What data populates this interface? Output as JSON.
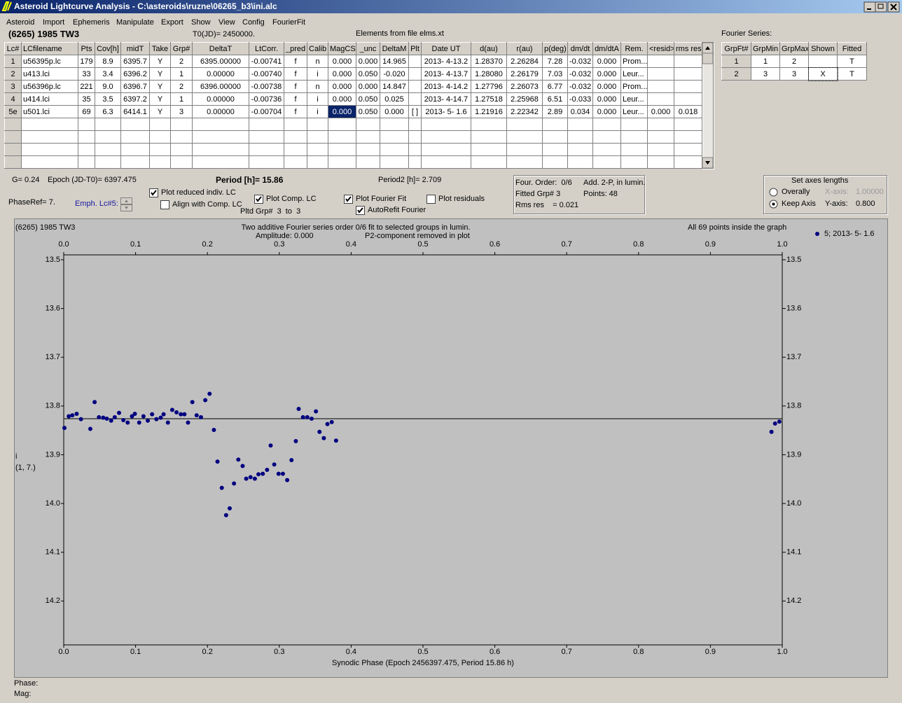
{
  "window": {
    "title": "Asteroid Lightcurve Analysis - C:\\asteroids\\ruzne\\06265_b3\\ini.alc"
  },
  "menu": [
    "Asteroid",
    "Import",
    "Ephemeris",
    "Manipulate",
    "Export",
    "Show",
    "View",
    "Config",
    "FourierFit"
  ],
  "header": {
    "object": "(6265) 1985 TW3",
    "t0": "T0(JD)= 2450000.",
    "elements": "Elements from file elms.xt",
    "fourier_label": "Fourier Series:"
  },
  "table": {
    "columns": [
      "Lc#",
      "LCfilename",
      "Pts",
      "Cov[h]",
      "midT",
      "Take",
      "Grp#",
      "DeltaT",
      "LtCorr.",
      "_pred",
      "Calib",
      "MagCS",
      "_unc",
      "DeltaM",
      "Plt",
      "Date UT",
      "d(au)",
      "r(au)",
      "p(deg)",
      "dm/dt",
      "dm/dtA",
      "Rem.",
      "<resid>",
      "rms res"
    ],
    "rows": [
      {
        "label": "1",
        "cells": [
          "u56395p.lc",
          "179",
          "8.9",
          "6395.7",
          "Y",
          "2",
          "6395.00000",
          "-0.00741",
          "f",
          "n",
          "0.000",
          "0.000",
          "14.965",
          null,
          "2013- 4-13.2",
          "1.28370",
          "2.26284",
          "7.28",
          "-0.032",
          "0.000",
          "Prom...",
          null,
          null
        ]
      },
      {
        "label": "2",
        "cells": [
          "u413.lci",
          "33",
          "3.4",
          "6396.2",
          "Y",
          "1",
          "0.00000",
          "-0.00740",
          "f",
          "i",
          "0.000",
          "0.050",
          "-0.020",
          null,
          "2013- 4-13.7",
          "1.28080",
          "2.26179",
          "7.03",
          "-0.032",
          "0.000",
          "Leur...",
          null,
          null
        ]
      },
      {
        "label": "3",
        "cells": [
          "u56396p.lc",
          "221",
          "9.0",
          "6396.7",
          "Y",
          "2",
          "6396.00000",
          "-0.00738",
          "f",
          "n",
          "0.000",
          "0.000",
          "14.847",
          null,
          "2013- 4-14.2",
          "1.27796",
          "2.26073",
          "6.77",
          "-0.032",
          "0.000",
          "Prom...",
          null,
          null
        ]
      },
      {
        "label": "4",
        "cells": [
          "u414.lci",
          "35",
          "3.5",
          "6397.2",
          "Y",
          "1",
          "0.00000",
          "-0.00736",
          "f",
          "i",
          "0.000",
          "0.050",
          "0.025",
          null,
          "2013- 4-14.7",
          "1.27518",
          "2.25968",
          "6.51",
          "-0.033",
          "0.000",
          "Leur...",
          null,
          null
        ]
      },
      {
        "label": "5e",
        "cells": [
          "u501.lci",
          "69",
          "6.3",
          "6414.1",
          "Y",
          "3",
          "0.00000",
          "-0.00704",
          "f",
          "i",
          "0.000",
          "0.050",
          "0.000",
          "[ ]",
          "2013- 5- 1.6",
          "1.21916",
          "2.22342",
          "2.89",
          "0.034",
          "0.000",
          "Leur...",
          "0.000",
          "0.018"
        ]
      }
    ],
    "selected": {
      "row": 4,
      "cell": 10
    }
  },
  "fourier_table": {
    "columns": [
      "GrpFt#",
      "GrpMin",
      "GrpMax",
      "Shown",
      "Fitted"
    ],
    "rows": [
      [
        "1",
        "1",
        "2",
        null,
        "T"
      ],
      [
        "2",
        "3",
        "3",
        "X",
        "T"
      ]
    ]
  },
  "info": {
    "g": "G= 0.24",
    "epoch": "Epoch (JD-T0)= 6397.475",
    "period": "Period [h]= 15.86",
    "period2": "Period2 [h]= 2.709",
    "phase_ref": "PhaseRef= 7.",
    "emph": "Emph. Lc#5:",
    "pltd": "Pltd Grp#  3  to  3"
  },
  "fit_box": [
    "Four. Order:  0/6",
    "Add. 2-P, in lumin.",
    "Fitted Grp# 3",
    "Points: 48",
    "Rms res    = 0.021"
  ],
  "options": [
    {
      "label": "Plot reduced indiv. LC",
      "checked": true
    },
    {
      "label": "Align with Comp. LC",
      "checked": false
    },
    {
      "label": "Plot Comp. LC",
      "checked": true
    },
    {
      "label": "Plot Fourier Fit",
      "checked": true
    },
    {
      "label": "AutoRefit Fourier",
      "checked": true
    },
    {
      "label": "Plot residuals",
      "checked": false
    }
  ],
  "axes_box": {
    "title": "Set axes lengths",
    "options": [
      {
        "label": "Overally",
        "selected": false,
        "axis": "X-axis:",
        "value": "1.00000",
        "enabled": false
      },
      {
        "label": "Keep Axis",
        "selected": true,
        "axis": "Y-axis:",
        "value": "0.800",
        "enabled": true
      }
    ]
  },
  "chart_data": {
    "type": "scatter",
    "title": "(6265) 1985 TW3",
    "subtitle": "Two additive Fourier series order 0/6 fit to selected groups in lumin.",
    "annotations": [
      "Amplitude: 0.000",
      "P2-component removed in plot",
      "All 69 points inside the graph"
    ],
    "x_label": "Synodic Phase (Epoch 2456397.475, Period 15.86 h)",
    "y_label": [
      "i",
      "(1, 7.)"
    ],
    "xlim": [
      0,
      1
    ],
    "ylim": [
      13.49,
      14.29
    ],
    "y_inverted": true,
    "xticks": [
      {
        "value": 0,
        "label": "0.0"
      },
      0.1,
      0.2,
      0.3,
      0.4,
      0.5,
      0.6,
      0.7,
      0.8,
      0.9,
      {
        "value": 1,
        "label": "1.0"
      }
    ],
    "yticks": [
      13.5,
      13.6,
      13.7,
      13.8,
      13.9,
      {
        "value": 14,
        "label": "14.0"
      },
      14.1,
      14.2
    ],
    "fit_level": 13.826,
    "series": [
      {
        "name": "5; 2013- 5- 1.6",
        "color": "#000080",
        "x": [
          0.001,
          0.007,
          0.012,
          0.018,
          0.024,
          0.037,
          0.043,
          0.049,
          0.055,
          0.06,
          0.066,
          0.071,
          0.077,
          0.083,
          0.089,
          0.095,
          0.099,
          0.105,
          0.111,
          0.117,
          0.123,
          0.129,
          0.135,
          0.139,
          0.145,
          0.151,
          0.157,
          0.163,
          0.168,
          0.173,
          0.179,
          0.185,
          0.191,
          0.197,
          0.203,
          0.209,
          0.214,
          0.22,
          0.226,
          0.231,
          0.237,
          0.243,
          0.249,
          0.254,
          0.26,
          0.266,
          0.271,
          0.277,
          0.283,
          0.288,
          0.293,
          0.299,
          0.305,
          0.311,
          0.317,
          0.323,
          0.327,
          0.333,
          0.339,
          0.345,
          0.351,
          0.356,
          0.362,
          0.367,
          0.373,
          0.379,
          0.985,
          0.99,
          0.996
        ],
        "values": [
          13.845,
          13.821,
          13.819,
          13.816,
          13.827,
          13.847,
          13.792,
          13.823,
          13.824,
          13.826,
          13.83,
          13.823,
          13.814,
          13.829,
          13.834,
          13.821,
          13.816,
          13.834,
          13.821,
          13.83,
          13.817,
          13.827,
          13.824,
          13.817,
          13.834,
          13.808,
          13.813,
          13.817,
          13.817,
          13.834,
          13.792,
          13.819,
          13.823,
          13.788,
          13.775,
          13.849,
          13.914,
          13.968,
          14.024,
          14.01,
          13.959,
          13.91,
          13.923,
          13.949,
          13.946,
          13.949,
          13.94,
          13.939,
          13.931,
          13.881,
          13.92,
          13.939,
          13.939,
          13.952,
          13.911,
          13.872,
          13.806,
          13.823,
          13.823,
          13.826,
          13.811,
          13.853,
          13.866,
          13.837,
          13.833,
          13.871,
          13.853,
          13.836,
          13.832
        ]
      }
    ]
  },
  "status": [
    "Phase:",
    "Mag:"
  ]
}
